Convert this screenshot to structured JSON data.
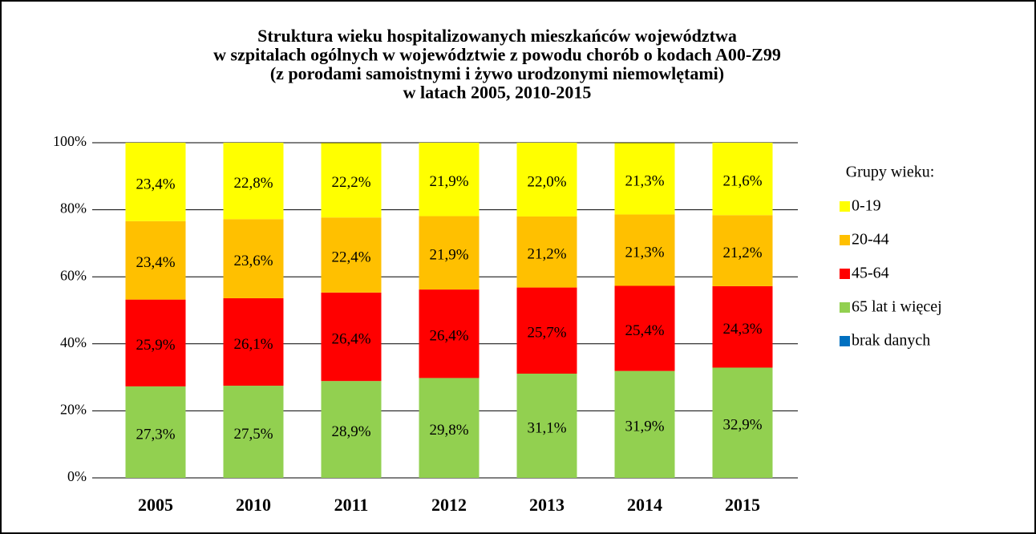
{
  "chart_data": {
    "type": "stacked_bar",
    "title": [
      "Struktura wieku hospitalizowanych mieszkańców województwa",
      "w szpitalach ogólnych w województwie z powodu chorób o kodach A00-Z99",
      "(z porodami samoistnymi i żywo urodzonymi niemowlętami)",
      "w latach 2005, 2010-2015"
    ],
    "legend_title": "Grupy wieku:",
    "legend": "right",
    "grid": true,
    "categories": [
      "2005",
      "2010",
      "2011",
      "2012",
      "2013",
      "2014",
      "2015"
    ],
    "ylim": [
      0,
      100
    ],
    "yticks": [
      {
        "value": 0,
        "label": "0%"
      },
      {
        "value": 20,
        "label": "20%"
      },
      {
        "value": 40,
        "label": "40%"
      },
      {
        "value": 60,
        "label": "60%"
      },
      {
        "value": 80,
        "label": "80%"
      },
      {
        "value": 100,
        "label": "100%"
      }
    ],
    "series": [
      {
        "name": "0-19",
        "color": "#ffff00",
        "values": [
          23.4,
          22.8,
          22.2,
          21.9,
          22.0,
          21.3,
          21.6
        ],
        "value_labels": [
          "23,4%",
          "22,8%",
          "22,2%",
          "21,9%",
          "22,0%",
          "21,3%",
          "21,6%"
        ]
      },
      {
        "name": "20-44",
        "color": "#ffc000",
        "values": [
          23.4,
          23.6,
          22.4,
          21.9,
          21.2,
          21.3,
          21.2
        ],
        "value_labels": [
          "23,4%",
          "23,6%",
          "22,4%",
          "21,9%",
          "21,2%",
          "21,3%",
          "21,2%"
        ]
      },
      {
        "name": "45-64",
        "color": "#ff0000",
        "values": [
          25.9,
          26.1,
          26.4,
          26.4,
          25.7,
          25.4,
          24.3
        ],
        "value_labels": [
          "25,9%",
          "26,1%",
          "26,4%",
          "26,4%",
          "25,7%",
          "25,4%",
          "24,3%"
        ]
      },
      {
        "name": "65 lat i więcej",
        "color": "#92d050",
        "values": [
          27.3,
          27.5,
          28.9,
          29.8,
          31.1,
          31.9,
          32.9
        ],
        "value_labels": [
          "27,3%",
          "27,5%",
          "28,9%",
          "29,8%",
          "31,1%",
          "31,9%",
          "32,9%"
        ]
      },
      {
        "name": "brak danych",
        "color": "#0070c0",
        "values": [
          0,
          0,
          0,
          0,
          0,
          0,
          0
        ]
      }
    ]
  }
}
